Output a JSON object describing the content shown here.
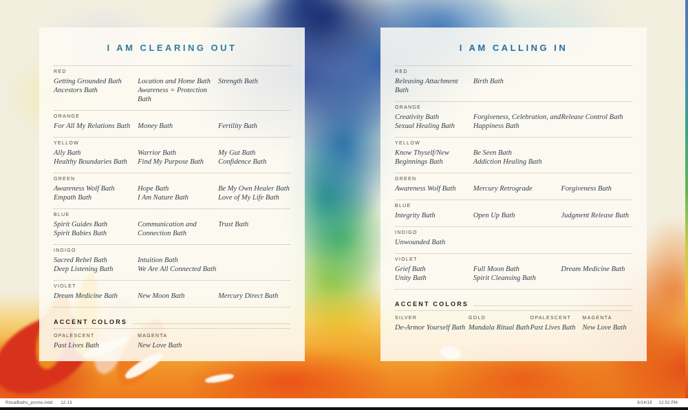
{
  "colors": {
    "rule": "#b9b5a5",
    "label_text": "#4b4a42",
    "bath_text": "#32404f",
    "accent_heading": "#1d1d1a"
  },
  "footer": {
    "file_name": "RitualBaths_promo.indd",
    "page_range": "12-13",
    "date": "6/14/19",
    "time": "12:52 PM"
  },
  "panels": [
    {
      "id": "clearing-out",
      "title": "I AM CLEARING OUT",
      "title_color": "#2a7da3",
      "sections": [
        {
          "label": "RED",
          "columns": [
            [
              "Getting Grounded Bath",
              "Ancestors Bath"
            ],
            [
              "Location and Home Bath",
              "Awareness = Protection Bath"
            ],
            [
              "Strength Bath"
            ]
          ]
        },
        {
          "label": "ORANGE",
          "columns": [
            [
              "For All My Relations Bath"
            ],
            [
              "Money Bath"
            ],
            [
              "Fertility Bath"
            ]
          ]
        },
        {
          "label": "YELLOW",
          "columns": [
            [
              "Ally Bath",
              "Healthy Boundaries Bath"
            ],
            [
              "Warrior Bath",
              "Find My Purpose Bath"
            ],
            [
              "My Gut Bath",
              "Confidence Bath"
            ]
          ]
        },
        {
          "label": "GREEN",
          "columns": [
            [
              "Awareness Wolf Bath",
              "Empath Bath"
            ],
            [
              "Hope Bath",
              "I Am Nature Bath"
            ],
            [
              "Be My Own Healer Bath",
              "Love of My Life Bath"
            ]
          ]
        },
        {
          "label": "BLUE",
          "columns": [
            [
              "Spirit Guides Bath",
              "Spirit Babies Bath"
            ],
            [
              "Communication and",
              "Connection Bath"
            ],
            [
              "Trust Bath"
            ]
          ]
        },
        {
          "label": "INDIGO",
          "columns": [
            [
              "Sacred Rebel Bath",
              "Deep Listening Bath"
            ],
            [
              "Intuition Bath",
              "We Are All Connected Bath"
            ],
            []
          ]
        },
        {
          "label": "VIOLET",
          "columns": [
            [
              "Dream Medicine Bath"
            ],
            [
              "New Moon Bath"
            ],
            [
              "Mercury Direct Bath"
            ]
          ]
        }
      ],
      "accent": {
        "heading": "ACCENT COLORS",
        "groups": [
          {
            "label": "OPALESCENT",
            "items": [
              "Past Lives Bath"
            ]
          },
          {
            "label": "MAGENTA",
            "items": [
              "New Love Bath"
            ]
          }
        ]
      }
    },
    {
      "id": "calling-in",
      "title": "I AM CALLING IN",
      "title_color": "#1f6da5",
      "sections": [
        {
          "label": "RED",
          "columns": [
            [
              "Releasing Attachment Bath"
            ],
            [
              "Birth Bath"
            ],
            []
          ]
        },
        {
          "label": "ORANGE",
          "columns": [
            [
              "Creativity Bath",
              "Sexual Healing Bath"
            ],
            [
              "Forgiveness, Celebration, and",
              "Happiness Bath"
            ],
            [
              "Release Control Bath"
            ]
          ]
        },
        {
          "label": "YELLOW",
          "columns": [
            [
              "Know Thyself/New",
              "Beginnings Bath"
            ],
            [
              "Be Seen Bath",
              "Addiction Healing Bath"
            ],
            []
          ]
        },
        {
          "label": "GREEN",
          "columns": [
            [
              "Awareness Wolf Bath"
            ],
            [
              "Mercury Retrograde"
            ],
            [
              "Forgiveness Bath"
            ]
          ]
        },
        {
          "label": "BLUE",
          "columns": [
            [
              "Integrity Bath"
            ],
            [
              "Open Up Bath"
            ],
            [
              "Judgment Release Bath"
            ]
          ]
        },
        {
          "label": "INDIGO",
          "columns": [
            [
              "Unwounded Bath"
            ],
            [],
            []
          ]
        },
        {
          "label": "VIOLET",
          "columns": [
            [
              "Grief Bath",
              "Unity Bath"
            ],
            [
              "Full Moon Bath",
              "Spirit Cleansing Bath"
            ],
            [
              "Dream Medicine Bath"
            ]
          ]
        }
      ],
      "accent": {
        "heading": "ACCENT COLORS",
        "groups": [
          {
            "label": "SILVER",
            "items": [
              "De-Armor Yourself Bath"
            ]
          },
          {
            "label": "GOLD",
            "items": [
              "Mandala Ritual Bath"
            ]
          },
          {
            "label": "OPALESCENT",
            "items": [
              "Past Lives Bath"
            ]
          },
          {
            "label": "MAGENTA",
            "items": [
              "New Love Bath"
            ]
          }
        ]
      }
    }
  ]
}
